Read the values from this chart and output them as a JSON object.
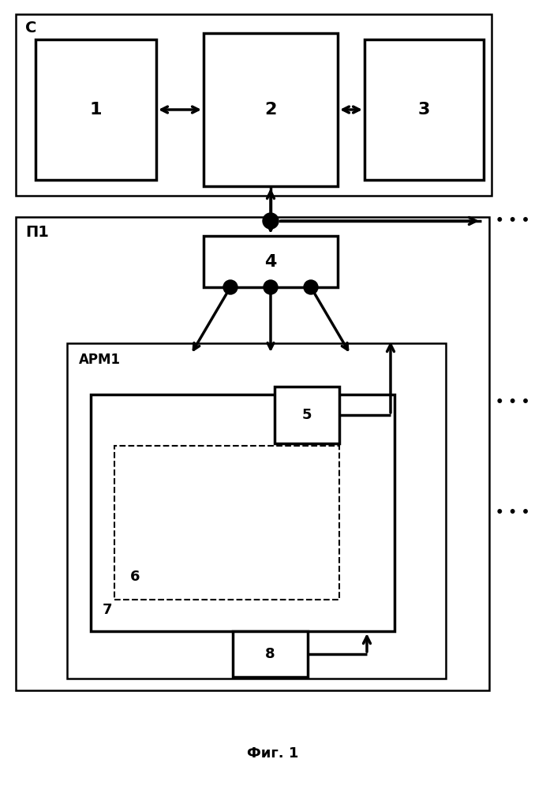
{
  "bg_color": "#ffffff",
  "fig_width": 6.92,
  "fig_height": 10.0,
  "title": "Фиг. 1",
  "title_fontsize": 13,
  "label_C": "С",
  "label_P1": "П1",
  "label_APM1": "АРМ1",
  "box1_label": "1",
  "box2_label": "2",
  "box3_label": "3",
  "box4_label": "4",
  "box5_label": "5",
  "box6_label": "6",
  "box7_label": "7",
  "box8_label": "8",
  "dots_label": "• • •",
  "line_color": "#000000",
  "lw_outer": 1.8,
  "lw_thick": 2.5,
  "lw_thin": 1.5
}
